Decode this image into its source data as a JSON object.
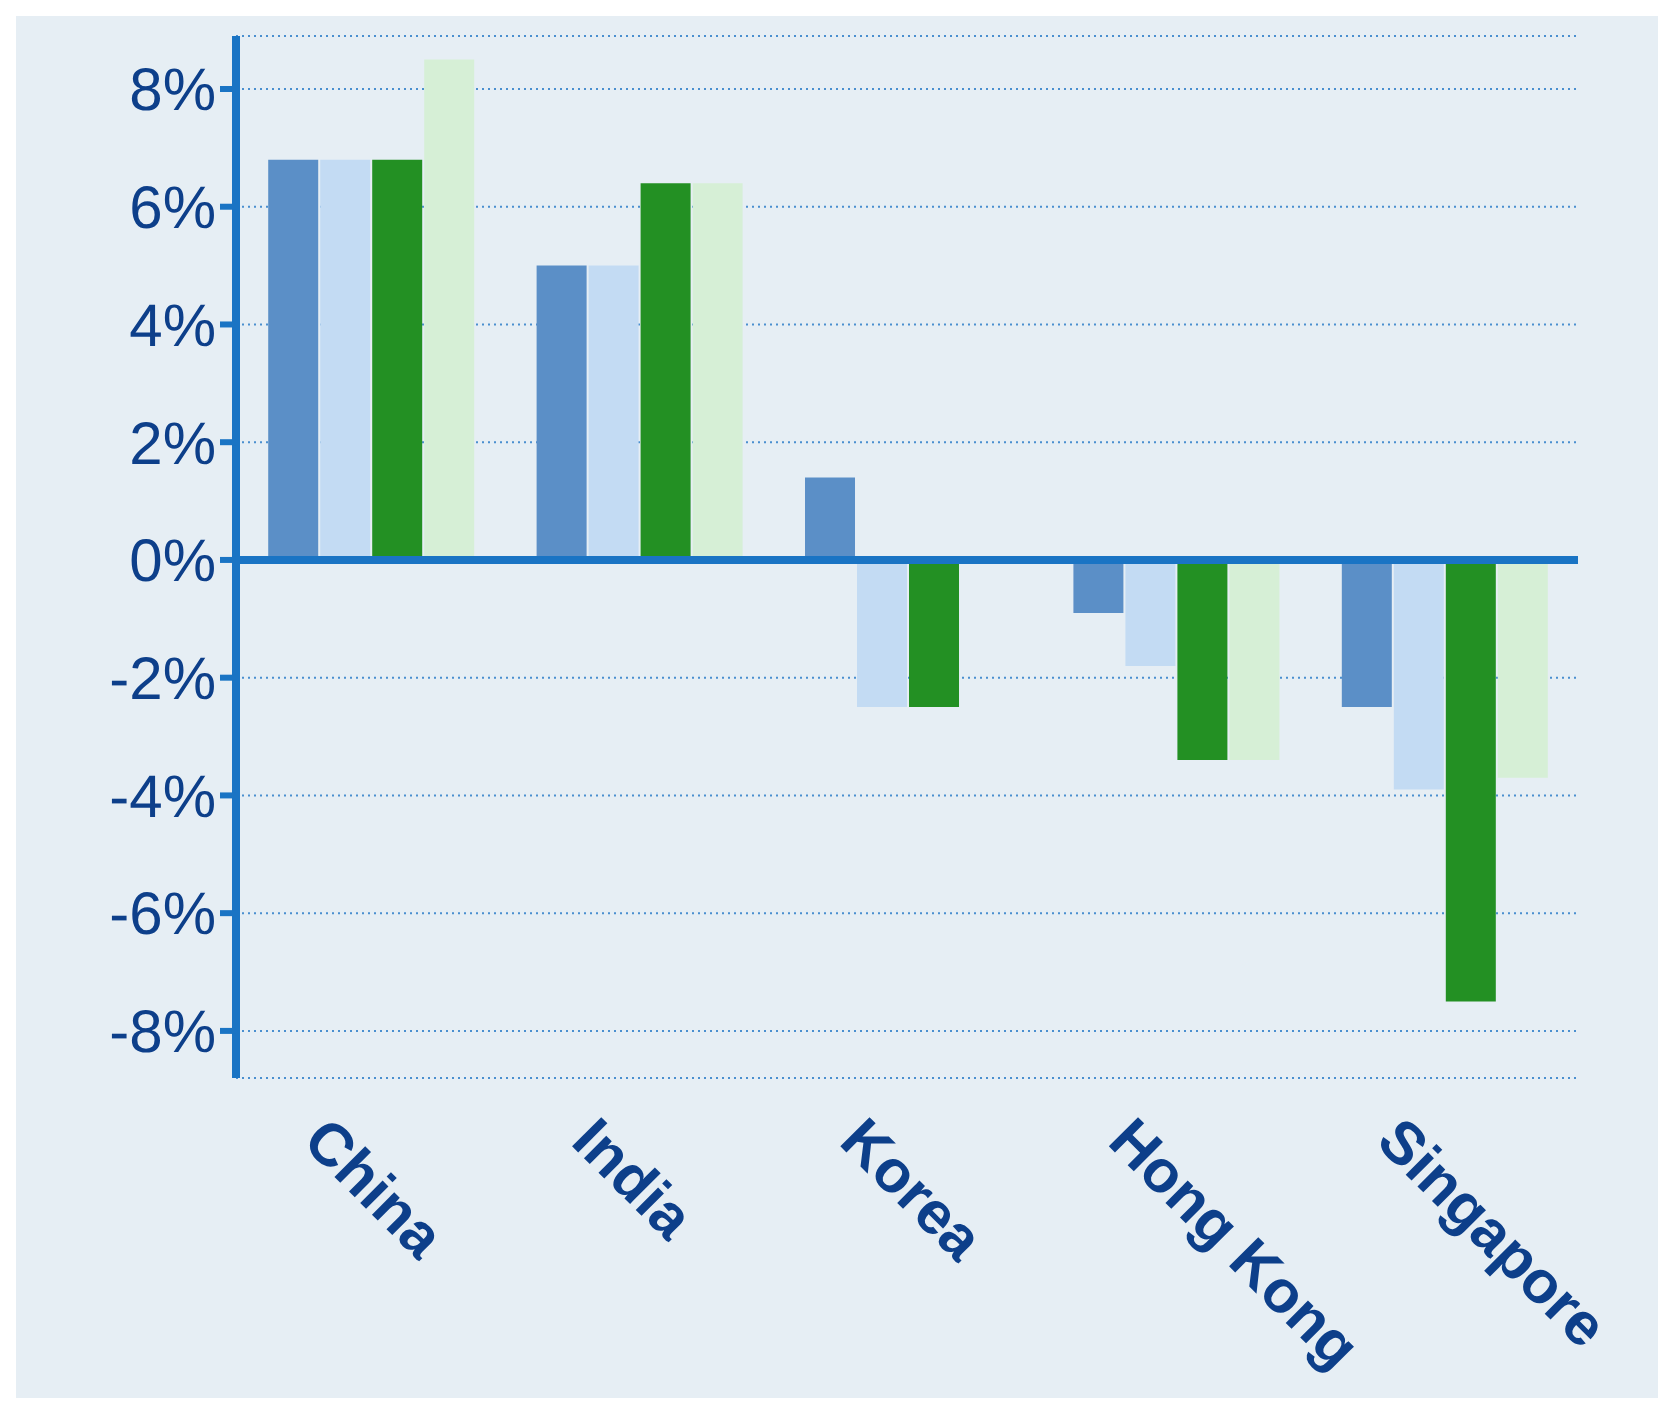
{
  "chart_data": {
    "type": "bar",
    "categories": [
      "China",
      "India",
      "Korea",
      "Hong Kong",
      "Singapore"
    ],
    "series": [
      {
        "color": "#5b8fc7",
        "values": [
          6.8,
          5.0,
          1.4,
          -0.9,
          -2.5
        ]
      },
      {
        "color": "#c3dbf3",
        "values": [
          6.8,
          5.0,
          -2.5,
          -1.8,
          -3.9
        ]
      },
      {
        "color": "#239023",
        "values": [
          6.8,
          6.4,
          -2.5,
          -3.4,
          -7.5
        ]
      },
      {
        "color": "#d6efd6",
        "values": [
          8.5,
          6.4,
          null,
          -3.4,
          -3.7
        ]
      }
    ],
    "ylim": [
      -8.8,
      8.9
    ],
    "yticks": [
      {
        "value": -8,
        "label": "-8%"
      },
      {
        "value": -6,
        "label": "-6%"
      },
      {
        "value": -4,
        "label": "-4%"
      },
      {
        "value": -2,
        "label": "-2%"
      },
      {
        "value": 0,
        "label": "0%"
      },
      {
        "value": 2,
        "label": "2%"
      },
      {
        "value": 4,
        "label": "4%"
      },
      {
        "value": 6,
        "label": "6%"
      },
      {
        "value": 8,
        "label": "8%"
      }
    ],
    "grid": "y",
    "ref_lines": [
      {
        "axis": "y",
        "value": 0,
        "color": "#1a74c4"
      }
    ]
  }
}
